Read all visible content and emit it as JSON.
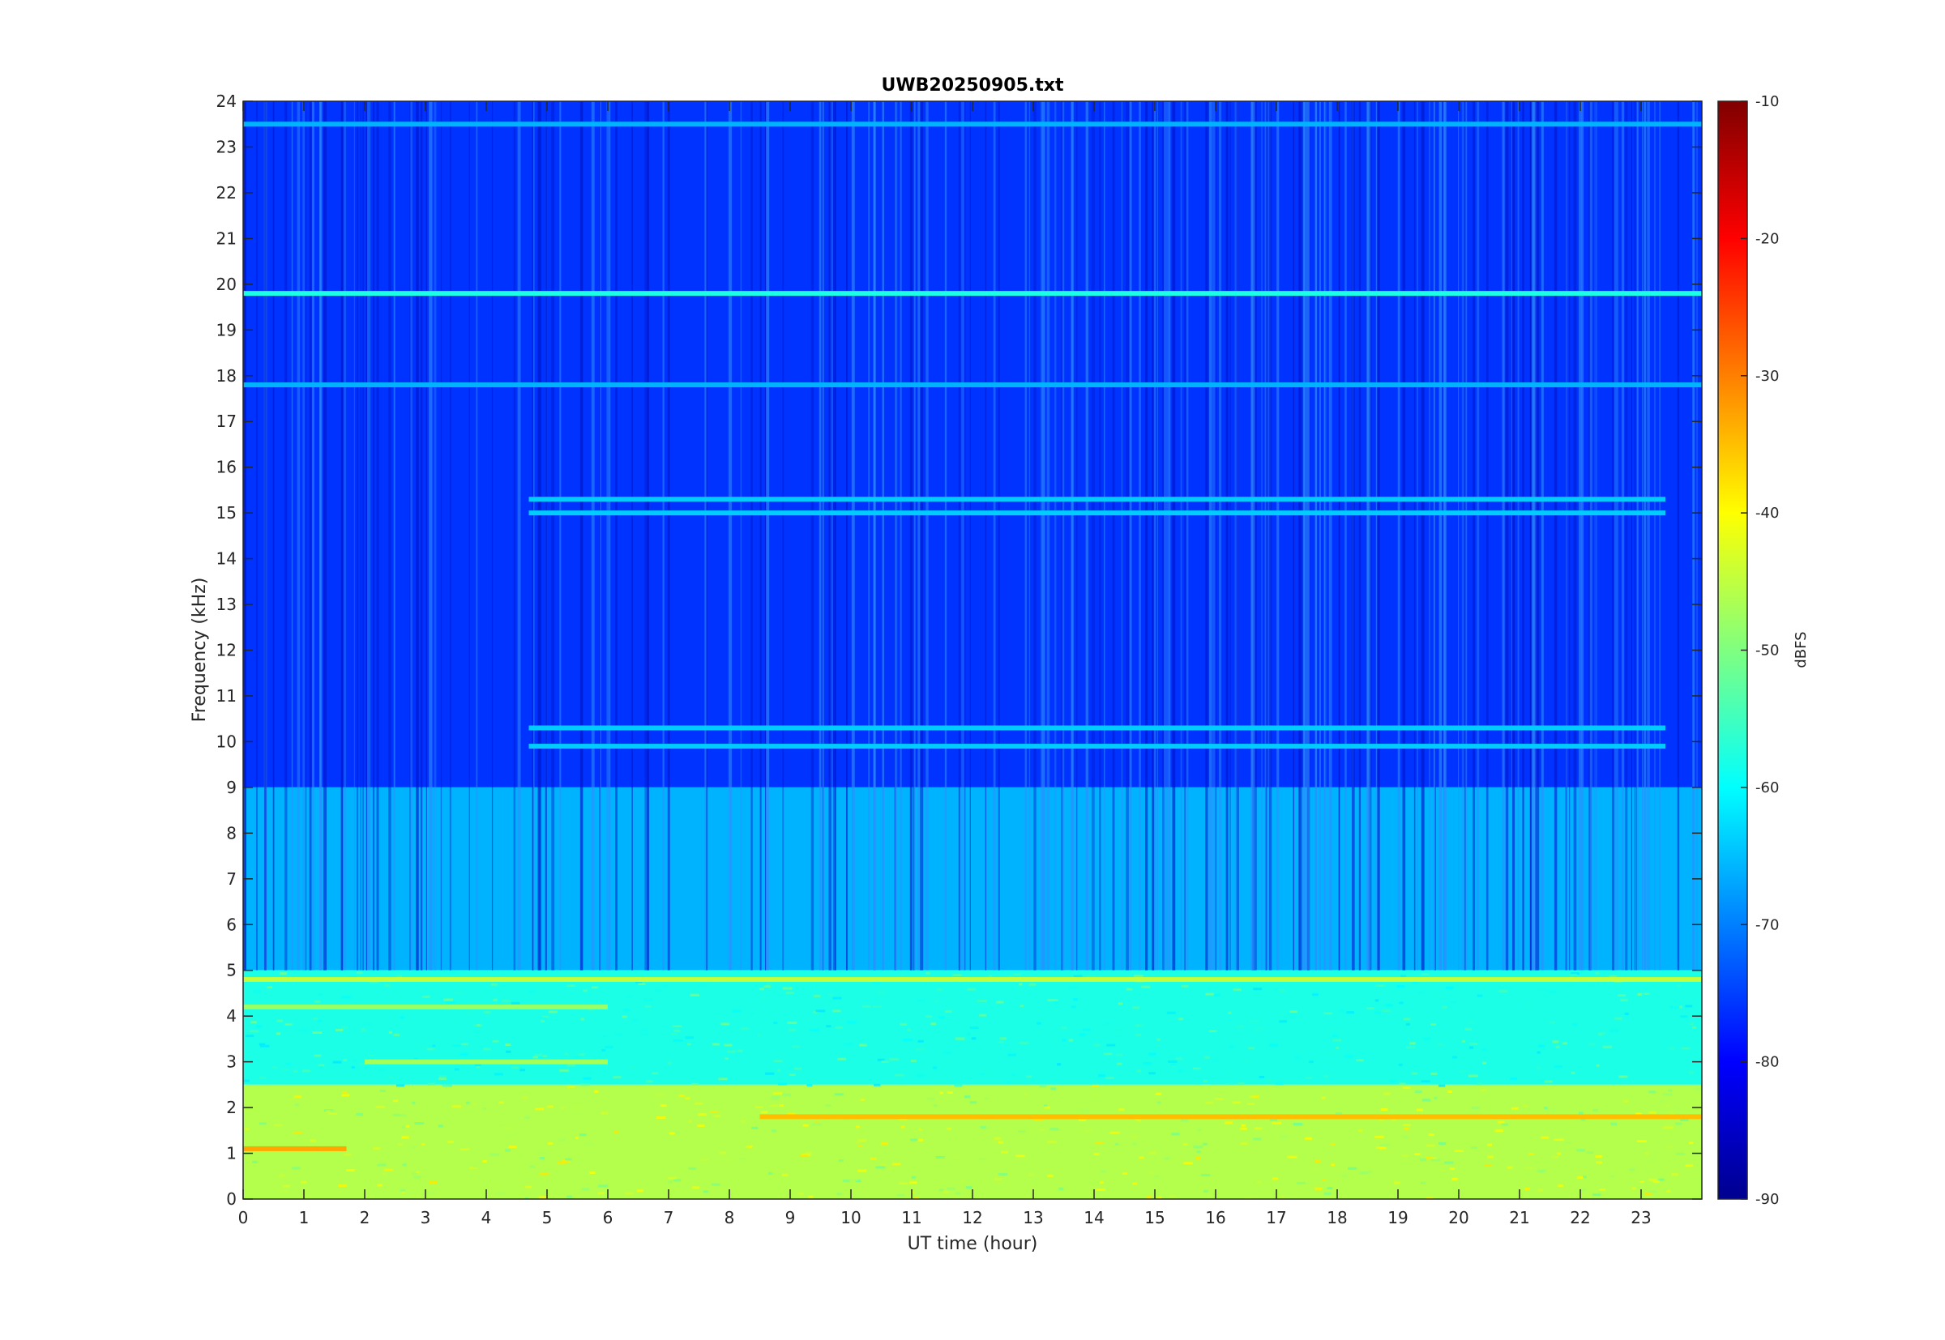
{
  "chart_data": {
    "type": "heatmap",
    "title": "UWB20250905.txt",
    "xlabel": "UT time (hour)",
    "ylabel": "Frequency (kHz)",
    "xlim": [
      0,
      24
    ],
    "ylim": [
      0,
      24
    ],
    "x_ticks": [
      "0",
      "1",
      "2",
      "3",
      "4",
      "5",
      "6",
      "7",
      "8",
      "9",
      "10",
      "11",
      "12",
      "13",
      "14",
      "15",
      "16",
      "17",
      "18",
      "19",
      "20",
      "21",
      "22",
      "23"
    ],
    "y_ticks": [
      "0",
      "1",
      "2",
      "3",
      "4",
      "5",
      "6",
      "7",
      "8",
      "9",
      "10",
      "11",
      "12",
      "13",
      "14",
      "15",
      "16",
      "17",
      "18",
      "19",
      "20",
      "21",
      "22",
      "23",
      "24"
    ],
    "colorbar": {
      "label": "dBFS",
      "colormap": "jet",
      "range": [
        -90,
        -10
      ],
      "ticks": [
        "-90",
        "-80",
        "-70",
        "-60",
        "-50",
        "-40",
        "-30",
        "-20",
        "-10"
      ]
    },
    "features": [
      {
        "kind": "background",
        "freq_khz": [
          9,
          24
        ],
        "level_dbfs": -76
      },
      {
        "kind": "background",
        "freq_khz": [
          5,
          9
        ],
        "level_dbfs": -66
      },
      {
        "kind": "background",
        "freq_khz": [
          2.5,
          5
        ],
        "level_dbfs": -58
      },
      {
        "kind": "background",
        "freq_khz": [
          0,
          2.5
        ],
        "level_dbfs": -46
      },
      {
        "kind": "line",
        "freq_khz": 19.8,
        "time_h": [
          0,
          24
        ],
        "level_dbfs": -58
      },
      {
        "kind": "line",
        "freq_khz": 23.5,
        "time_h": [
          0,
          24
        ],
        "level_dbfs": -66
      },
      {
        "kind": "line",
        "freq_khz": 17.8,
        "time_h": [
          0,
          24
        ],
        "level_dbfs": -66
      },
      {
        "kind": "line",
        "freq_khz": 15.3,
        "time_h": [
          4.7,
          23.4
        ],
        "level_dbfs": -64
      },
      {
        "kind": "line",
        "freq_khz": 15.0,
        "time_h": [
          4.7,
          23.4
        ],
        "level_dbfs": -64
      },
      {
        "kind": "line",
        "freq_khz": 10.3,
        "time_h": [
          4.7,
          23.4
        ],
        "level_dbfs": -64
      },
      {
        "kind": "line",
        "freq_khz": 9.9,
        "time_h": [
          4.7,
          23.4
        ],
        "level_dbfs": -64
      },
      {
        "kind": "line",
        "freq_khz": 4.8,
        "time_h": [
          0,
          24
        ],
        "level_dbfs": -45
      },
      {
        "kind": "line",
        "freq_khz": 4.2,
        "time_h": [
          0,
          6
        ],
        "level_dbfs": -48
      },
      {
        "kind": "line",
        "freq_khz": 3.0,
        "time_h": [
          2,
          6
        ],
        "level_dbfs": -47
      },
      {
        "kind": "line",
        "freq_khz": 1.1,
        "time_h": [
          0,
          1.7
        ],
        "level_dbfs": -33
      },
      {
        "kind": "line",
        "freq_khz": 1.8,
        "time_h": [
          8.5,
          24
        ],
        "level_dbfs": -35
      }
    ]
  }
}
